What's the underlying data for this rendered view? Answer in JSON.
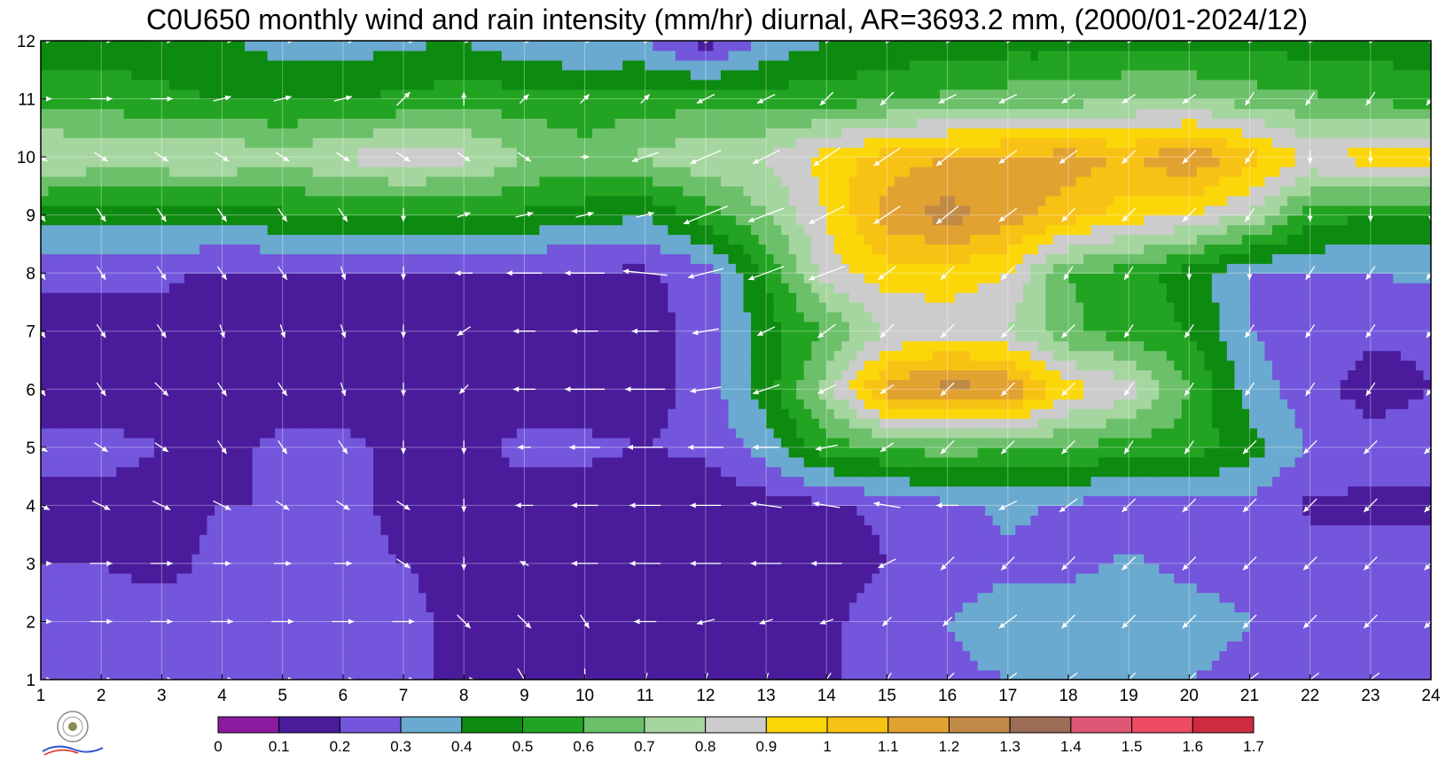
{
  "chart_data": {
    "type": "heatmap",
    "title": "C0U650 monthly wind and rain intensity (mm/hr) diurnal, AR=3693.2 mm, (2000/01-2024/12)",
    "xlabel": "",
    "ylabel": "",
    "x": [
      1,
      2,
      3,
      4,
      5,
      6,
      7,
      8,
      9,
      10,
      11,
      12,
      13,
      14,
      15,
      16,
      17,
      18,
      19,
      20,
      21,
      22,
      23,
      24
    ],
    "y": [
      1,
      2,
      3,
      4,
      5,
      6,
      7,
      8,
      9,
      10,
      11,
      12
    ],
    "xlim": [
      1,
      24
    ],
    "ylim": [
      1,
      12
    ],
    "grid": true,
    "colorbar": {
      "placement": "bottom",
      "levels": [
        0,
        0.1,
        0.2,
        0.3,
        0.4,
        0.5,
        0.6,
        0.7,
        0.8,
        0.9,
        1,
        1.1,
        1.2,
        1.3,
        1.4,
        1.5,
        1.6,
        1.7
      ],
      "colors": [
        "#8a1a9e",
        "#4a1c9c",
        "#7356dc",
        "#6aaad0",
        "#0d8a10",
        "#22a422",
        "#6cc06a",
        "#a6d6a0",
        "#cccccc",
        "#fbd70a",
        "#f8c214",
        "#e2a231",
        "#c08a46",
        "#9c6c56",
        "#de5674",
        "#ee4a62",
        "#ce2a40"
      ]
    },
    "intensity": [
      [
        0.22,
        0.23,
        0.23,
        0.22,
        0.22,
        0.22,
        0.22,
        0.18,
        0.18,
        0.15,
        0.12,
        0.12,
        0.12,
        0.18,
        0.25,
        0.28,
        0.3,
        0.35,
        0.3,
        0.3,
        0.28,
        0.28,
        0.25,
        0.25
      ],
      [
        0.22,
        0.23,
        0.23,
        0.22,
        0.22,
        0.22,
        0.22,
        0.18,
        0.18,
        0.15,
        0.12,
        0.12,
        0.12,
        0.18,
        0.25,
        0.3,
        0.35,
        0.35,
        0.35,
        0.33,
        0.3,
        0.3,
        0.28,
        0.25
      ],
      [
        0.2,
        0.2,
        0.18,
        0.22,
        0.22,
        0.22,
        0.2,
        0.18,
        0.18,
        0.15,
        0.12,
        0.12,
        0.12,
        0.15,
        0.2,
        0.25,
        0.28,
        0.28,
        0.31,
        0.28,
        0.28,
        0.25,
        0.25,
        0.25
      ],
      [
        0.18,
        0.18,
        0.18,
        0.2,
        0.2,
        0.22,
        0.18,
        0.18,
        0.16,
        0.15,
        0.12,
        0.12,
        0.15,
        0.18,
        0.22,
        0.28,
        0.32,
        0.28,
        0.26,
        0.26,
        0.26,
        0.18,
        0.18,
        0.18
      ],
      [
        0.22,
        0.22,
        0.2,
        0.18,
        0.22,
        0.22,
        0.18,
        0.18,
        0.22,
        0.22,
        0.2,
        0.22,
        0.35,
        0.55,
        0.6,
        0.65,
        0.6,
        0.6,
        0.55,
        0.55,
        0.45,
        0.28,
        0.25,
        0.25
      ],
      [
        0.15,
        0.15,
        0.18,
        0.15,
        0.15,
        0.15,
        0.15,
        0.15,
        0.15,
        0.15,
        0.15,
        0.25,
        0.45,
        0.75,
        1.15,
        1.25,
        1.2,
        0.95,
        0.85,
        0.6,
        0.35,
        0.25,
        0.15,
        0.2
      ],
      [
        0.15,
        0.15,
        0.15,
        0.15,
        0.15,
        0.15,
        0.15,
        0.15,
        0.15,
        0.15,
        0.15,
        0.25,
        0.45,
        0.6,
        0.8,
        0.85,
        0.8,
        0.62,
        0.55,
        0.5,
        0.3,
        0.25,
        0.22,
        0.22
      ],
      [
        0.22,
        0.22,
        0.22,
        0.18,
        0.18,
        0.18,
        0.18,
        0.18,
        0.18,
        0.18,
        0.18,
        0.25,
        0.5,
        0.85,
        0.95,
        0.95,
        0.9,
        0.6,
        0.55,
        0.45,
        0.3,
        0.3,
        0.3,
        0.32
      ],
      [
        0.45,
        0.42,
        0.45,
        0.45,
        0.48,
        0.5,
        0.5,
        0.5,
        0.48,
        0.45,
        0.4,
        0.55,
        0.7,
        0.9,
        1.15,
        1.25,
        1.15,
        1.05,
        0.95,
        0.9,
        0.78,
        0.55,
        0.5,
        0.5
      ],
      [
        0.82,
        0.78,
        0.78,
        0.8,
        0.72,
        0.82,
        0.85,
        0.83,
        0.7,
        0.65,
        0.72,
        0.78,
        0.8,
        0.95,
        1.05,
        1.1,
        1.12,
        1.15,
        1.08,
        1.2,
        1.05,
        0.88,
        0.95,
        0.95
      ],
      [
        0.55,
        0.55,
        0.52,
        0.5,
        0.5,
        0.5,
        0.52,
        0.55,
        0.55,
        0.52,
        0.55,
        0.55,
        0.55,
        0.55,
        0.58,
        0.62,
        0.65,
        0.65,
        0.7,
        0.7,
        0.65,
        0.62,
        0.58,
        0.55
      ],
      [
        0.45,
        0.45,
        0.45,
        0.42,
        0.35,
        0.35,
        0.38,
        0.4,
        0.32,
        0.3,
        0.3,
        0.15,
        0.32,
        0.4,
        0.42,
        0.45,
        0.45,
        0.45,
        0.47,
        0.47,
        0.47,
        0.45,
        0.45,
        0.45
      ]
    ],
    "wind_u": [
      [
        0.5,
        0.5,
        0.5,
        0.5,
        0.5,
        0.5,
        0.5,
        0.5,
        0.3,
        0.0,
        -0.1,
        -0.1,
        -0.1,
        -0.2,
        -0.2,
        -0.3,
        -0.4,
        -0.4,
        -0.3,
        -0.3,
        -0.4,
        -0.4,
        -0.4,
        -0.4
      ],
      [
        0.5,
        0.5,
        0.5,
        0.5,
        0.5,
        0.5,
        0.5,
        0.3,
        0.3,
        0.2,
        -0.5,
        -0.4,
        -0.3,
        -0.3,
        -0.2,
        -0.2,
        -0.4,
        -0.3,
        -0.3,
        -0.3,
        -0.3,
        -0.3,
        -0.3,
        -0.3
      ],
      [
        0.5,
        0.5,
        0.5,
        0.4,
        0.4,
        0.4,
        0.3,
        0.0,
        -0.2,
        -0.6,
        -0.7,
        -0.7,
        -0.7,
        -0.7,
        -0.4,
        -0.3,
        -0.3,
        -0.3,
        -0.3,
        -0.3,
        -0.3,
        -0.3,
        -0.3,
        -0.3
      ],
      [
        0.4,
        0.4,
        0.4,
        0.4,
        0.3,
        0.3,
        0.3,
        0.0,
        -0.4,
        -0.6,
        -0.7,
        -0.7,
        -0.7,
        -0.6,
        -0.6,
        -0.5,
        -0.4,
        -0.4,
        -0.3,
        -0.3,
        -0.3,
        -0.3,
        -0.3,
        -0.3
      ],
      [
        0.3,
        0.3,
        0.3,
        0.2,
        0.2,
        0.2,
        0.0,
        0.0,
        -0.3,
        -0.7,
        -0.8,
        -0.8,
        -0.6,
        -0.5,
        -0.3,
        -0.3,
        -0.3,
        -0.3,
        -0.2,
        -0.2,
        -0.3,
        -0.3,
        -0.3,
        -0.3
      ],
      [
        0.2,
        0.2,
        0.3,
        0.2,
        0.2,
        0.1,
        0.0,
        -0.2,
        -0.5,
        -0.9,
        -0.9,
        -0.7,
        -0.6,
        -0.4,
        -0.3,
        -0.3,
        -0.3,
        -0.3,
        -0.2,
        -0.2,
        -0.2,
        -0.2,
        -0.2,
        -0.2
      ],
      [
        0.2,
        0.2,
        0.2,
        0.1,
        0.1,
        0.1,
        0.0,
        -0.3,
        -0.5,
        -0.6,
        -0.6,
        -0.6,
        -0.4,
        -0.4,
        -0.3,
        -0.3,
        -0.3,
        -0.3,
        -0.2,
        -0.2,
        -0.2,
        -0.2,
        -0.2,
        -0.2
      ],
      [
        0.2,
        0.2,
        0.2,
        0.2,
        0.2,
        0.1,
        0.0,
        -0.4,
        -0.8,
        -0.9,
        -1.0,
        -0.8,
        -0.8,
        -0.8,
        -0.4,
        -0.3,
        -0.3,
        -0.2,
        -0.2,
        0.0,
        0.0,
        -0.2,
        -0.2,
        -0.2
      ],
      [
        0.2,
        0.2,
        0.2,
        0.2,
        0.2,
        0.2,
        0.0,
        0.3,
        0.4,
        0.4,
        0.4,
        -1.0,
        -0.8,
        -0.8,
        -0.6,
        -0.5,
        -0.4,
        -0.3,
        -0.3,
        -0.3,
        -0.2,
        0.0,
        0.0,
        0.0
      ],
      [
        0.3,
        0.3,
        0.3,
        0.3,
        0.3,
        0.3,
        0.3,
        0.3,
        0.3,
        0.2,
        -0.6,
        -0.7,
        -0.6,
        -0.6,
        -0.6,
        -0.5,
        -0.4,
        -0.4,
        -0.3,
        -0.3,
        -0.2,
        0.0,
        0.0,
        0.0
      ],
      [
        0.5,
        0.5,
        0.5,
        0.4,
        0.4,
        0.4,
        0.3,
        0.0,
        0.2,
        0.2,
        0.2,
        -0.4,
        -0.4,
        -0.3,
        -0.3,
        -0.4,
        -0.4,
        -0.3,
        -0.3,
        -0.3,
        -0.2,
        -0.2,
        -0.2,
        -0.2
      ],
      [
        0.5,
        0.5,
        0.5,
        0.5,
        0.5,
        0.5,
        0.5,
        0.3,
        0.3,
        0.3,
        0.2,
        0.2,
        0.0,
        0.2,
        0.2,
        0.2,
        0.2,
        0.2,
        0.2,
        0.2,
        0.2,
        0.2,
        0.2,
        0.2
      ]
    ],
    "wind_v": [
      [
        0.0,
        0.0,
        0.0,
        0.0,
        0.0,
        0.0,
        0.0,
        0.0,
        -0.5,
        -0.5,
        -0.3,
        -0.3,
        -0.3,
        -0.3,
        -0.3,
        -0.3,
        -0.3,
        -0.3,
        -0.3,
        -0.3,
        -0.3,
        -0.3,
        -0.3,
        -0.3
      ],
      [
        0.0,
        0.0,
        0.0,
        0.0,
        0.0,
        0.0,
        0.0,
        -0.3,
        -0.3,
        -0.3,
        0.0,
        -0.1,
        -0.1,
        -0.1,
        -0.2,
        -0.2,
        -0.3,
        -0.3,
        -0.3,
        -0.3,
        -0.3,
        -0.3,
        -0.3,
        -0.3
      ],
      [
        0.0,
        0.0,
        0.0,
        0.0,
        0.0,
        0.0,
        -0.2,
        -0.3,
        0.1,
        0.0,
        0.0,
        0.0,
        0.0,
        0.0,
        -0.2,
        -0.3,
        -0.3,
        -0.3,
        -0.3,
        -0.3,
        -0.3,
        -0.3,
        -0.3,
        -0.3
      ],
      [
        -0.2,
        -0.2,
        -0.2,
        -0.2,
        -0.2,
        -0.2,
        -0.2,
        -0.3,
        0.0,
        0.0,
        0.0,
        0.0,
        0.1,
        0.1,
        0.1,
        0.0,
        -0.2,
        -0.3,
        -0.3,
        -0.3,
        -0.3,
        -0.3,
        -0.3,
        -0.3
      ],
      [
        -0.2,
        -0.2,
        -0.2,
        -0.3,
        -0.3,
        -0.3,
        -0.3,
        -0.3,
        0.0,
        0.0,
        0.0,
        0.0,
        0.0,
        -0.1,
        -0.2,
        -0.3,
        -0.3,
        -0.3,
        -0.3,
        -0.3,
        -0.3,
        -0.3,
        -0.3,
        -0.3
      ],
      [
        -0.3,
        -0.3,
        -0.3,
        -0.3,
        -0.3,
        -0.3,
        -0.3,
        -0.2,
        0.0,
        0.0,
        0.0,
        -0.1,
        -0.2,
        -0.2,
        -0.2,
        -0.3,
        -0.3,
        -0.3,
        -0.3,
        -0.3,
        -0.3,
        -0.3,
        -0.3,
        -0.3
      ],
      [
        -0.3,
        -0.3,
        -0.3,
        -0.3,
        -0.3,
        -0.3,
        -0.3,
        -0.2,
        0.0,
        0.0,
        0.0,
        -0.1,
        -0.2,
        -0.3,
        -0.3,
        -0.3,
        -0.3,
        -0.3,
        -0.3,
        -0.3,
        -0.3,
        -0.3,
        -0.3,
        -0.3
      ],
      [
        -0.3,
        -0.3,
        -0.3,
        -0.3,
        -0.3,
        -0.3,
        -0.3,
        0.0,
        0.0,
        0.0,
        0.1,
        -0.2,
        -0.3,
        -0.3,
        -0.3,
        -0.3,
        -0.3,
        -0.3,
        -0.3,
        -0.3,
        -0.3,
        -0.3,
        -0.3,
        -0.3
      ],
      [
        -0.3,
        -0.3,
        -0.3,
        -0.3,
        -0.3,
        -0.3,
        -0.3,
        0.1,
        0.1,
        0.1,
        0.1,
        -0.4,
        -0.3,
        -0.4,
        -0.4,
        -0.4,
        -0.3,
        -0.3,
        -0.3,
        -0.3,
        -0.3,
        -0.3,
        -0.3,
        -0.3
      ],
      [
        -0.2,
        -0.2,
        -0.2,
        -0.2,
        -0.2,
        -0.2,
        -0.2,
        -0.2,
        -0.2,
        0.0,
        -0.2,
        -0.3,
        -0.3,
        -0.4,
        -0.4,
        -0.4,
        -0.3,
        -0.3,
        -0.3,
        -0.3,
        -0.3,
        -0.3,
        -0.3,
        -0.3
      ],
      [
        0.0,
        0.0,
        0.0,
        0.1,
        0.1,
        0.1,
        0.3,
        0.3,
        0.2,
        0.2,
        0.2,
        -0.2,
        -0.2,
        -0.3,
        -0.3,
        -0.2,
        -0.2,
        -0.2,
        -0.2,
        -0.2,
        -0.3,
        -0.3,
        -0.3,
        -0.3
      ],
      [
        0.0,
        0.0,
        0.0,
        0.0,
        0.0,
        0.0,
        0.0,
        0.0,
        0.0,
        0.0,
        0.0,
        0.0,
        0.0,
        0.0,
        0.0,
        0.0,
        0.0,
        0.0,
        0.0,
        0.0,
        0.0,
        0.0,
        0.0,
        0.0
      ]
    ]
  }
}
